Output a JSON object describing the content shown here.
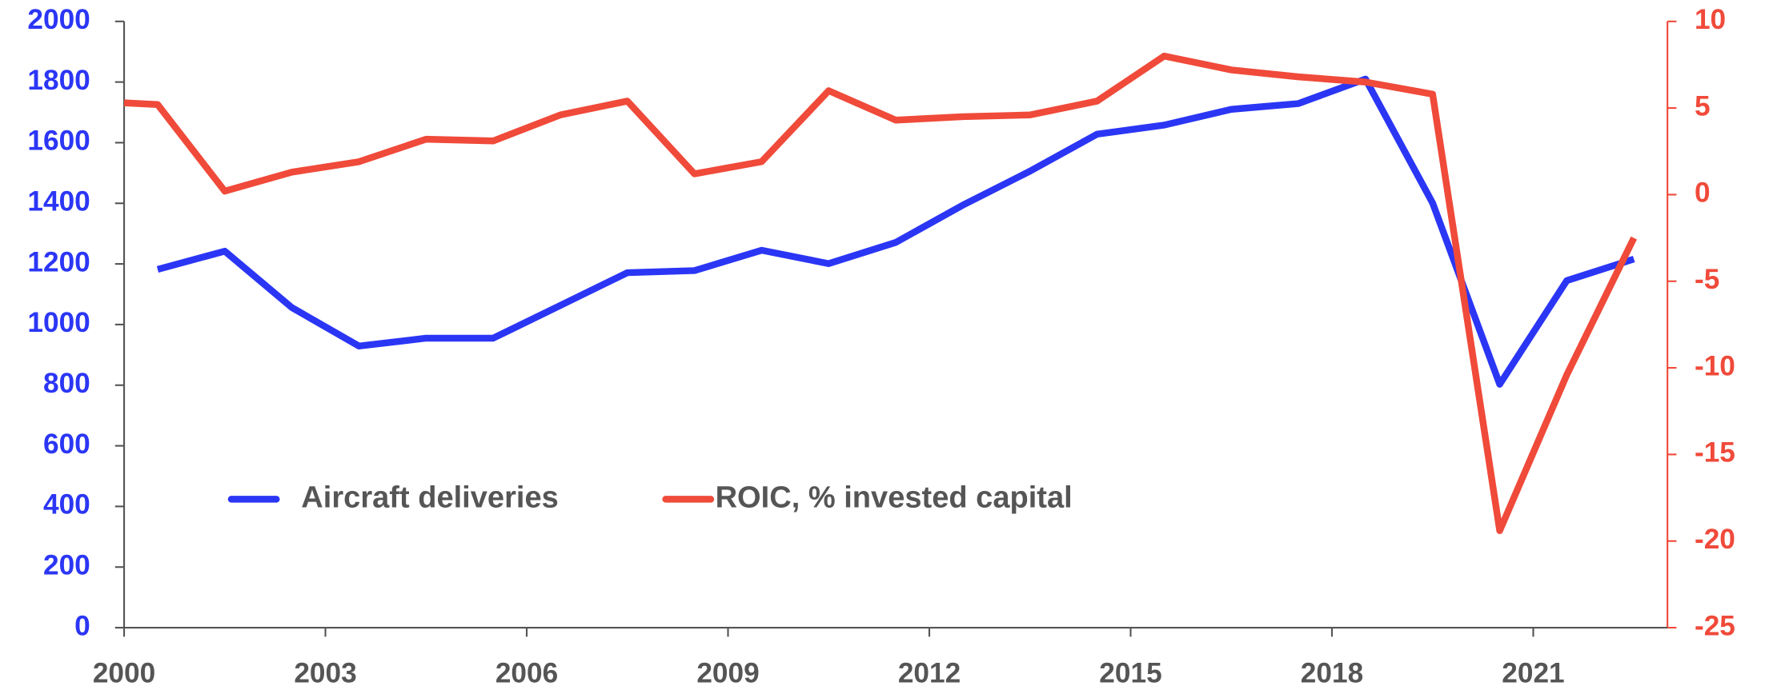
{
  "chart_data": {
    "type": "line",
    "xlim": [
      2000,
      2023
    ],
    "xticks": [
      2000,
      2003,
      2006,
      2009,
      2012,
      2015,
      2018,
      2021
    ],
    "ylim": [
      0,
      2000
    ],
    "yticks": [
      0,
      200,
      400,
      600,
      800,
      1000,
      1200,
      1400,
      1600,
      1800,
      2000
    ],
    "y2lim": [
      -25,
      10
    ],
    "y2ticks": [
      -25,
      -20,
      -15,
      -10,
      -5,
      0,
      5,
      10
    ],
    "legend": "lower left",
    "series": [
      {
        "name": "Aircraft deliveries",
        "color": "#2b36f5",
        "x": [
          2000.5,
          2001.5,
          2002.5,
          2003.5,
          2004.5,
          2005.5,
          2006.5,
          2007.5,
          2008.5,
          2009.5,
          2010.5,
          2011.5,
          2012.5,
          2013.5,
          2014.5,
          2015.5,
          2016.5,
          2017.5,
          2018.5,
          2019.5,
          2020.5,
          2021.5,
          2022.5
        ],
        "values": [
          1182,
          1242,
          1056,
          929,
          955,
          955,
          1063,
          1171,
          1178,
          1245,
          1201,
          1271,
          1394,
          1506,
          1628,
          1658,
          1710,
          1729,
          1810,
          1401,
          803,
          1145,
          1216
        ]
      },
      {
        "name": "ROIC, % invested capital",
        "color": "#f04a3a",
        "axis": "y2",
        "x": [
          2000,
          2000.5,
          2001.5,
          2002.5,
          2003.5,
          2004.5,
          2005.5,
          2006.5,
          2007.5,
          2008.5,
          2009.5,
          2010.5,
          2011.5,
          2012.5,
          2013.5,
          2014.5,
          2015.5,
          2016.5,
          2017.5,
          2018.5,
          2019.5,
          2020.5,
          2021.5,
          2022.5
        ],
        "values": [
          5.3,
          5.2,
          0.2,
          1.3,
          1.9,
          3.2,
          3.1,
          4.6,
          5.4,
          1.2,
          1.9,
          6.0,
          4.3,
          4.5,
          4.6,
          5.4,
          8.0,
          7.2,
          6.8,
          6.5,
          5.8,
          -19.4,
          -10.4,
          -2.5
        ]
      }
    ]
  }
}
